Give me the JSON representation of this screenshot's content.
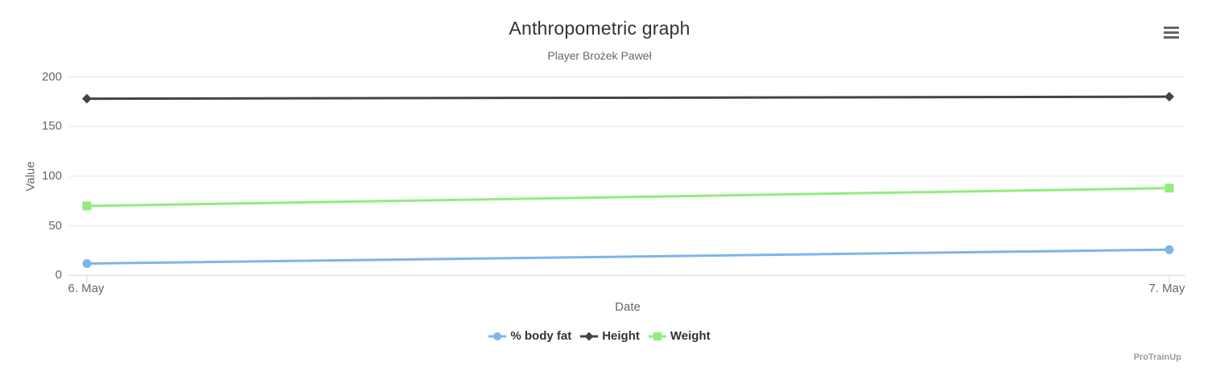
{
  "chart_data": {
    "type": "line",
    "title": "Anthropometric graph",
    "subtitle": "Player Brożek Paweł",
    "categories": [
      "6. May",
      "7. May"
    ],
    "series": [
      {
        "name": "% body fat",
        "color": "#7cb5ec",
        "marker": "circle",
        "values": [
          12,
          26
        ]
      },
      {
        "name": "Height",
        "color": "#434348",
        "marker": "diamond",
        "values": [
          178,
          180
        ]
      },
      {
        "name": "Weight",
        "color": "#90ed7d",
        "marker": "square",
        "values": [
          70,
          88
        ]
      }
    ],
    "xlabel": "Date",
    "ylabel": "Value",
    "ylim": [
      0,
      200
    ],
    "yticks": [
      0,
      50,
      100,
      150,
      200
    ],
    "grid": true,
    "legend_position": "bottom-center"
  },
  "toolbar": {
    "menu_icon": "hamburger-icon"
  },
  "footer": {
    "watermark": "ProTrainUp"
  },
  "colors": {
    "title_text": "#333333",
    "muted_text": "#666666",
    "legend_text": "#333333",
    "gridline": "#e6e6e6",
    "axis_line": "#ccd6eb",
    "burger": "#666666",
    "watermark": "#9b9b9b"
  }
}
